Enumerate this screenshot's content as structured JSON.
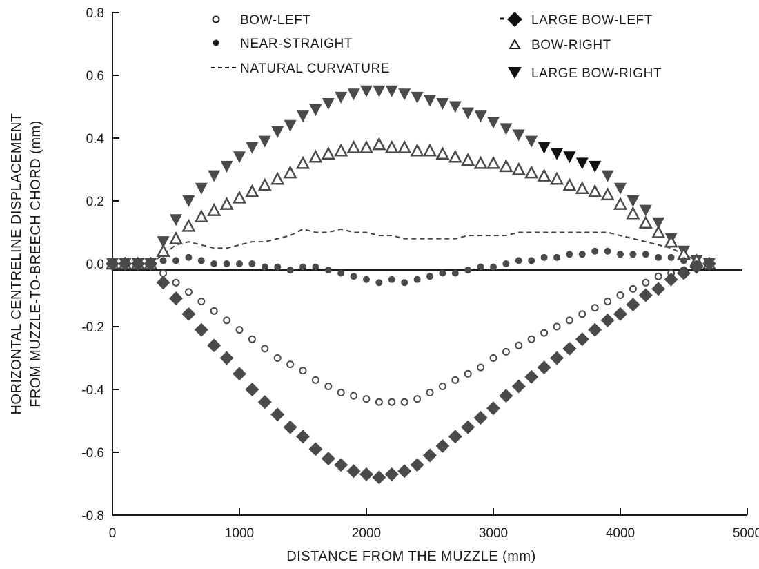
{
  "chart_data": {
    "type": "scatter",
    "title": "",
    "xlabel": "DISTANCE FROM THE MUZZLE (mm)",
    "ylabel_line1": "HORIZONTAL CENTRELINE DISPLACEMENT",
    "ylabel_line2": "FROM MUZZLE-TO-BREECH CHORD (mm)",
    "xlim": [
      0,
      5000
    ],
    "ylim": [
      -0.8,
      0.8
    ],
    "x_ticks": [
      0,
      1000,
      2000,
      3000,
      4000,
      5000
    ],
    "x_tick_labels": [
      "0",
      "1000",
      "2000",
      "3000",
      "4000",
      "5000"
    ],
    "y_ticks": [
      0.8,
      0.6,
      0.4,
      0.2,
      0.0,
      -0.2,
      -0.4,
      -0.6,
      -0.8
    ],
    "y_tick_labels": [
      "0.8",
      "0.6",
      "0.4",
      "0.2",
      "0.0",
      "-0.2",
      "-0.4",
      "-0.6",
      "-0.8"
    ],
    "grid": false,
    "legend_position": "top",
    "zero_line": true,
    "colors": {
      "markers": "#4a4a4a",
      "dark_markers": "#111111",
      "axis": "#1a1a1a",
      "curve": "#444444"
    },
    "legend": [
      {
        "label": "BOW-LEFT",
        "marker": "open-circle"
      },
      {
        "label": "NEAR-STRAIGHT",
        "marker": "filled-circle"
      },
      {
        "label": "NATURAL CURVATURE",
        "marker": "dashed-line"
      },
      {
        "label": "LARGE BOW-LEFT",
        "marker": "filled-diamond"
      },
      {
        "label": "BOW-RIGHT",
        "marker": "open-triangle"
      },
      {
        "label": "LARGE BOW-RIGHT",
        "marker": "filled-down-triangle"
      }
    ],
    "series": [
      {
        "name": "LARGE BOW-RIGHT",
        "marker": "filled-down-triangle",
        "x": [
          0,
          100,
          200,
          300,
          400,
          500,
          600,
          700,
          800,
          900,
          1000,
          1100,
          1200,
          1300,
          1400,
          1500,
          1600,
          1700,
          1800,
          1900,
          2000,
          2100,
          2200,
          2300,
          2400,
          2500,
          2600,
          2700,
          2800,
          2900,
          3000,
          3100,
          3200,
          3300,
          3400,
          3500,
          3600,
          3700,
          3800,
          3900,
          4000,
          4100,
          4200,
          4300,
          4400,
          4500,
          4600,
          4700
        ],
        "y": [
          0.0,
          0.0,
          0.0,
          0.0,
          0.07,
          0.14,
          0.2,
          0.24,
          0.28,
          0.31,
          0.34,
          0.37,
          0.39,
          0.42,
          0.44,
          0.47,
          0.49,
          0.51,
          0.53,
          0.54,
          0.55,
          0.55,
          0.55,
          0.54,
          0.53,
          0.52,
          0.51,
          0.5,
          0.48,
          0.47,
          0.45,
          0.43,
          0.41,
          0.39,
          0.37,
          0.35,
          0.34,
          0.32,
          0.31,
          0.28,
          0.24,
          0.2,
          0.17,
          0.13,
          0.08,
          0.04,
          0.01,
          0.0
        ]
      },
      {
        "name": "BOW-RIGHT",
        "marker": "open-triangle",
        "x": [
          0,
          100,
          200,
          300,
          400,
          500,
          600,
          700,
          800,
          900,
          1000,
          1100,
          1200,
          1300,
          1400,
          1500,
          1600,
          1700,
          1800,
          1900,
          2000,
          2100,
          2200,
          2300,
          2400,
          2500,
          2600,
          2700,
          2800,
          2900,
          3000,
          3100,
          3200,
          3300,
          3400,
          3500,
          3600,
          3700,
          3800,
          3900,
          4000,
          4100,
          4200,
          4300,
          4400,
          4500,
          4600,
          4700
        ],
        "y": [
          0.0,
          0.0,
          0.0,
          0.0,
          0.04,
          0.08,
          0.12,
          0.15,
          0.17,
          0.19,
          0.21,
          0.23,
          0.25,
          0.27,
          0.29,
          0.32,
          0.34,
          0.35,
          0.36,
          0.37,
          0.37,
          0.38,
          0.37,
          0.37,
          0.36,
          0.36,
          0.35,
          0.34,
          0.33,
          0.32,
          0.32,
          0.31,
          0.3,
          0.29,
          0.28,
          0.27,
          0.25,
          0.24,
          0.23,
          0.22,
          0.19,
          0.16,
          0.13,
          0.1,
          0.07,
          0.03,
          0.01,
          0.0
        ]
      },
      {
        "name": "NATURAL CURVATURE",
        "marker": "dashed-line",
        "x": [
          300,
          400,
          500,
          600,
          700,
          800,
          900,
          1000,
          1100,
          1200,
          1300,
          1400,
          1500,
          1600,
          1700,
          1800,
          1900,
          2000,
          2100,
          2200,
          2300,
          2400,
          2500,
          2600,
          2700,
          2800,
          2900,
          3000,
          3100,
          3200,
          3300,
          3400,
          3500,
          3600,
          3700,
          3800,
          3900,
          4000,
          4100,
          4200,
          4300,
          4400,
          4500,
          4600
        ],
        "y": [
          0.0,
          0.03,
          0.06,
          0.07,
          0.06,
          0.05,
          0.05,
          0.06,
          0.07,
          0.07,
          0.08,
          0.09,
          0.11,
          0.1,
          0.1,
          0.11,
          0.1,
          0.1,
          0.09,
          0.09,
          0.08,
          0.08,
          0.08,
          0.08,
          0.08,
          0.09,
          0.09,
          0.09,
          0.09,
          0.1,
          0.1,
          0.1,
          0.1,
          0.1,
          0.1,
          0.1,
          0.1,
          0.09,
          0.08,
          0.07,
          0.06,
          0.05,
          0.03,
          0.01
        ]
      },
      {
        "name": "NEAR-STRAIGHT",
        "marker": "filled-circle",
        "x": [
          0,
          100,
          200,
          300,
          400,
          500,
          600,
          700,
          800,
          900,
          1000,
          1100,
          1200,
          1300,
          1400,
          1500,
          1600,
          1700,
          1800,
          1900,
          2000,
          2100,
          2200,
          2300,
          2400,
          2500,
          2600,
          2700,
          2800,
          2900,
          3000,
          3100,
          3200,
          3300,
          3400,
          3500,
          3600,
          3700,
          3800,
          3900,
          4000,
          4100,
          4200,
          4300,
          4400,
          4500,
          4600,
          4700
        ],
        "y": [
          0.0,
          0.0,
          0.0,
          0.0,
          0.01,
          0.01,
          0.02,
          0.01,
          0.0,
          0.0,
          0.0,
          0.0,
          -0.01,
          -0.01,
          -0.02,
          -0.01,
          -0.01,
          -0.02,
          -0.03,
          -0.04,
          -0.05,
          -0.06,
          -0.05,
          -0.06,
          -0.05,
          -0.04,
          -0.03,
          -0.03,
          -0.02,
          -0.01,
          -0.01,
          0.0,
          0.01,
          0.01,
          0.02,
          0.02,
          0.03,
          0.03,
          0.04,
          0.04,
          0.03,
          0.03,
          0.03,
          0.02,
          0.02,
          0.01,
          0.0,
          0.0
        ]
      },
      {
        "name": "BOW-LEFT",
        "marker": "open-circle",
        "x": [
          0,
          100,
          200,
          300,
          400,
          500,
          600,
          700,
          800,
          900,
          1000,
          1100,
          1200,
          1300,
          1400,
          1500,
          1600,
          1700,
          1800,
          1900,
          2000,
          2100,
          2200,
          2300,
          2400,
          2500,
          2600,
          2700,
          2800,
          2900,
          3000,
          3100,
          3200,
          3300,
          3400,
          3500,
          3600,
          3700,
          3800,
          3900,
          4000,
          4100,
          4200,
          4300,
          4400,
          4500,
          4600,
          4700
        ],
        "y": [
          0.0,
          0.0,
          0.0,
          0.0,
          -0.03,
          -0.06,
          -0.09,
          -0.12,
          -0.15,
          -0.18,
          -0.21,
          -0.24,
          -0.27,
          -0.3,
          -0.32,
          -0.34,
          -0.37,
          -0.39,
          -0.41,
          -0.42,
          -0.43,
          -0.44,
          -0.44,
          -0.44,
          -0.43,
          -0.41,
          -0.39,
          -0.37,
          -0.35,
          -0.33,
          -0.3,
          -0.28,
          -0.26,
          -0.24,
          -0.22,
          -0.2,
          -0.18,
          -0.16,
          -0.14,
          -0.12,
          -0.1,
          -0.08,
          -0.06,
          -0.04,
          -0.03,
          -0.02,
          -0.01,
          0.0
        ]
      },
      {
        "name": "LARGE BOW-LEFT",
        "marker": "filled-diamond",
        "x": [
          0,
          100,
          200,
          300,
          400,
          500,
          600,
          700,
          800,
          900,
          1000,
          1100,
          1200,
          1300,
          1400,
          1500,
          1600,
          1700,
          1800,
          1900,
          2000,
          2100,
          2200,
          2300,
          2400,
          2500,
          2600,
          2700,
          2800,
          2900,
          3000,
          3100,
          3200,
          3300,
          3400,
          3500,
          3600,
          3700,
          3800,
          3900,
          4000,
          4100,
          4200,
          4300,
          4400,
          4500,
          4600,
          4700
        ],
        "y": [
          0.0,
          0.0,
          0.0,
          0.0,
          -0.06,
          -0.11,
          -0.16,
          -0.21,
          -0.26,
          -0.3,
          -0.35,
          -0.4,
          -0.44,
          -0.48,
          -0.52,
          -0.55,
          -0.59,
          -0.62,
          -0.64,
          -0.66,
          -0.67,
          -0.68,
          -0.67,
          -0.66,
          -0.64,
          -0.61,
          -0.58,
          -0.55,
          -0.52,
          -0.49,
          -0.46,
          -0.42,
          -0.39,
          -0.36,
          -0.33,
          -0.3,
          -0.27,
          -0.24,
          -0.21,
          -0.18,
          -0.16,
          -0.13,
          -0.1,
          -0.08,
          -0.05,
          -0.03,
          -0.01,
          0.0
        ]
      }
    ]
  }
}
